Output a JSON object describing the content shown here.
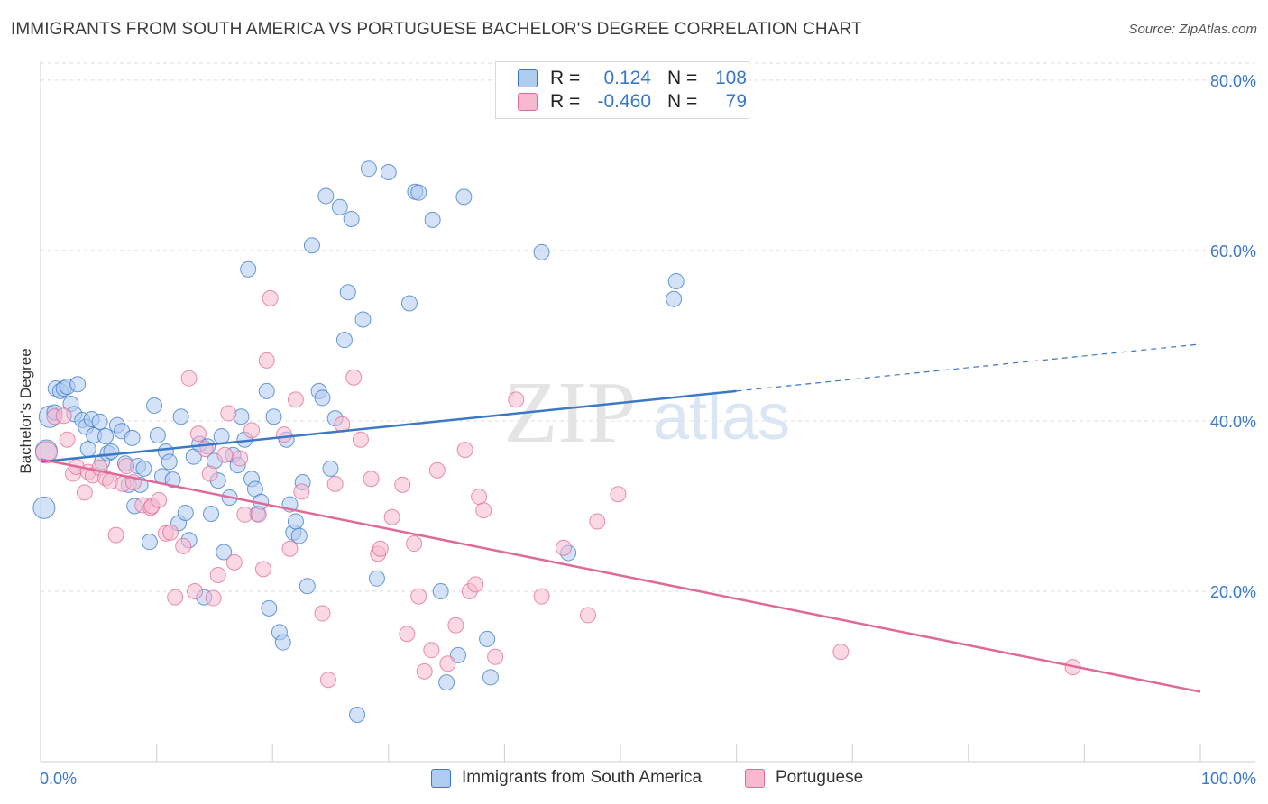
{
  "title": "IMMIGRANTS FROM SOUTH AMERICA VS PORTUGUESE BACHELOR'S DEGREE CORRELATION CHART",
  "source": "Source: ZipAtlas.com",
  "watermark": {
    "zip": "ZIP",
    "atlas": "atlas"
  },
  "colors": {
    "blue": "#3a78c8",
    "blue_fill": "#aecbf0",
    "pink": "#e06a97",
    "pink_fill": "#f6b9cf",
    "grid": "#dddddd",
    "axis_text": "#3a78c8"
  },
  "legend": {
    "rows": [
      {
        "r_label": "R =",
        "r_value": "0.124",
        "n_label": "N =",
        "n_value": "108",
        "color": "blue"
      },
      {
        "r_label": "R =",
        "r_value": "-0.460",
        "n_label": "N =",
        "n_value": "79",
        "color": "pink"
      }
    ]
  },
  "bottom_legend": [
    {
      "label": "Immigrants from South America",
      "color": "blue"
    },
    {
      "label": "Portuguese",
      "color": "pink"
    }
  ],
  "chart_data": {
    "type": "scatter",
    "title": "IMMIGRANTS FROM SOUTH AMERICA VS PORTUGUESE BACHELOR'S DEGREE CORRELATION CHART",
    "xlabel": "",
    "ylabel": "Bachelor's Degree",
    "xlim": [
      0,
      100
    ],
    "ylim": [
      0,
      82
    ],
    "x_tick_labels": [
      "0.0%",
      "100.0%"
    ],
    "y_ticks": [
      20,
      40,
      60,
      80
    ],
    "y_tick_labels": [
      "20.0%",
      "40.0%",
      "60.0%",
      "80.0%"
    ],
    "grid": true,
    "legend_position": "top-center",
    "series": [
      {
        "name": "Immigrants from South America",
        "color": "blue",
        "trend": {
          "x": [
            0,
            60
          ],
          "y": [
            35.2,
            43.5
          ],
          "dashed_to": [
            100,
            49.0
          ]
        },
        "points": [
          [
            0.3,
            29.8
          ],
          [
            0.5,
            36.5
          ],
          [
            0.8,
            40.5
          ],
          [
            1.2,
            41.0
          ],
          [
            1.3,
            43.8
          ],
          [
            1.7,
            43.5
          ],
          [
            2.0,
            43.8
          ],
          [
            2.3,
            44.0
          ],
          [
            2.6,
            42.0
          ],
          [
            2.9,
            40.8
          ],
          [
            3.2,
            44.3
          ],
          [
            3.6,
            40.1
          ],
          [
            3.9,
            39.3
          ],
          [
            4.1,
            36.7
          ],
          [
            4.4,
            40.2
          ],
          [
            4.6,
            38.3
          ],
          [
            5.1,
            39.9
          ],
          [
            5.3,
            35.2
          ],
          [
            5.6,
            38.2
          ],
          [
            5.8,
            36.2
          ],
          [
            6.1,
            36.4
          ],
          [
            6.6,
            39.5
          ],
          [
            7.0,
            38.8
          ],
          [
            7.3,
            35.0
          ],
          [
            7.6,
            32.5
          ],
          [
            7.9,
            38.0
          ],
          [
            8.1,
            30.0
          ],
          [
            8.4,
            34.7
          ],
          [
            8.6,
            32.5
          ],
          [
            8.9,
            34.4
          ],
          [
            9.4,
            25.8
          ],
          [
            9.8,
            41.8
          ],
          [
            10.1,
            38.3
          ],
          [
            10.5,
            33.5
          ],
          [
            10.8,
            36.4
          ],
          [
            11.1,
            35.2
          ],
          [
            11.4,
            33.1
          ],
          [
            11.9,
            28.0
          ],
          [
            12.1,
            40.5
          ],
          [
            12.5,
            29.2
          ],
          [
            12.8,
            26.0
          ],
          [
            13.2,
            35.8
          ],
          [
            13.7,
            37.3
          ],
          [
            14.1,
            19.3
          ],
          [
            14.4,
            37.0
          ],
          [
            14.7,
            29.1
          ],
          [
            15.0,
            35.3
          ],
          [
            15.3,
            33.0
          ],
          [
            15.6,
            38.2
          ],
          [
            15.8,
            24.6
          ],
          [
            16.3,
            31.0
          ],
          [
            16.6,
            36.0
          ],
          [
            17.0,
            34.8
          ],
          [
            17.3,
            40.5
          ],
          [
            17.6,
            37.8
          ],
          [
            17.9,
            57.8
          ],
          [
            18.2,
            33.2
          ],
          [
            18.5,
            32.0
          ],
          [
            18.7,
            29.1
          ],
          [
            19.0,
            30.5
          ],
          [
            19.5,
            43.5
          ],
          [
            19.7,
            18.0
          ],
          [
            20.1,
            40.5
          ],
          [
            20.6,
            15.2
          ],
          [
            20.9,
            14.0
          ],
          [
            21.2,
            37.8
          ],
          [
            21.5,
            30.2
          ],
          [
            21.8,
            26.9
          ],
          [
            22.0,
            28.2
          ],
          [
            22.3,
            26.5
          ],
          [
            22.6,
            32.8
          ],
          [
            23.0,
            20.6
          ],
          [
            23.4,
            60.6
          ],
          [
            24.0,
            43.5
          ],
          [
            24.3,
            42.7
          ],
          [
            24.6,
            66.4
          ],
          [
            25.0,
            34.4
          ],
          [
            25.4,
            40.3
          ],
          [
            25.8,
            65.1
          ],
          [
            26.2,
            49.5
          ],
          [
            26.5,
            55.1
          ],
          [
            26.8,
            63.7
          ],
          [
            27.3,
            5.5
          ],
          [
            27.8,
            51.9
          ],
          [
            28.3,
            69.6
          ],
          [
            29.0,
            21.5
          ],
          [
            30.0,
            69.2
          ],
          [
            31.8,
            53.8
          ],
          [
            32.3,
            66.9
          ],
          [
            32.6,
            66.8
          ],
          [
            33.8,
            63.6
          ],
          [
            34.5,
            20.0
          ],
          [
            35.0,
            9.3
          ],
          [
            36.0,
            12.5
          ],
          [
            36.5,
            66.3
          ],
          [
            38.5,
            14.4
          ],
          [
            38.8,
            9.9
          ],
          [
            43.2,
            59.8
          ],
          [
            45.5,
            24.5
          ],
          [
            54.6,
            54.3
          ],
          [
            54.8,
            56.4
          ]
        ]
      },
      {
        "name": "Portuguese",
        "color": "pink",
        "trend": {
          "x": [
            0,
            100
          ],
          "y": [
            35.5,
            8.2
          ]
        },
        "points": [
          [
            0.5,
            36.3
          ],
          [
            1.2,
            40.5
          ],
          [
            2.0,
            40.6
          ],
          [
            2.3,
            37.8
          ],
          [
            2.8,
            33.8
          ],
          [
            3.1,
            34.6
          ],
          [
            3.8,
            31.6
          ],
          [
            4.1,
            34.0
          ],
          [
            4.5,
            33.6
          ],
          [
            5.1,
            34.5
          ],
          [
            5.6,
            33.3
          ],
          [
            6.0,
            32.9
          ],
          [
            6.5,
            26.6
          ],
          [
            7.1,
            32.6
          ],
          [
            7.4,
            34.7
          ],
          [
            8.0,
            32.8
          ],
          [
            8.8,
            30.1
          ],
          [
            9.5,
            29.8
          ],
          [
            9.6,
            30.0
          ],
          [
            10.2,
            30.7
          ],
          [
            10.8,
            26.8
          ],
          [
            11.2,
            26.9
          ],
          [
            11.6,
            19.3
          ],
          [
            12.3,
            25.3
          ],
          [
            12.8,
            45.0
          ],
          [
            13.3,
            20.0
          ],
          [
            13.6,
            38.5
          ],
          [
            14.2,
            36.7
          ],
          [
            14.6,
            33.8
          ],
          [
            14.9,
            19.2
          ],
          [
            15.3,
            21.9
          ],
          [
            15.9,
            36.0
          ],
          [
            16.2,
            40.9
          ],
          [
            16.7,
            23.4
          ],
          [
            17.2,
            35.6
          ],
          [
            17.6,
            29.0
          ],
          [
            18.2,
            38.9
          ],
          [
            18.8,
            29.0
          ],
          [
            19.2,
            22.6
          ],
          [
            19.5,
            47.1
          ],
          [
            19.8,
            54.4
          ],
          [
            21.0,
            38.4
          ],
          [
            21.5,
            25.0
          ],
          [
            22.0,
            42.5
          ],
          [
            22.5,
            31.7
          ],
          [
            24.3,
            17.4
          ],
          [
            24.8,
            9.6
          ],
          [
            25.4,
            32.6
          ],
          [
            26.0,
            39.6
          ],
          [
            27.0,
            45.1
          ],
          [
            27.6,
            37.8
          ],
          [
            28.5,
            33.2
          ],
          [
            29.1,
            24.4
          ],
          [
            29.3,
            25.0
          ],
          [
            30.3,
            28.7
          ],
          [
            31.2,
            32.5
          ],
          [
            31.6,
            15.0
          ],
          [
            32.2,
            25.6
          ],
          [
            32.6,
            19.4
          ],
          [
            33.1,
            10.6
          ],
          [
            33.7,
            13.1
          ],
          [
            34.2,
            34.2
          ],
          [
            35.1,
            11.5
          ],
          [
            35.8,
            16.0
          ],
          [
            36.6,
            36.6
          ],
          [
            37.0,
            20.0
          ],
          [
            37.5,
            20.8
          ],
          [
            37.8,
            31.1
          ],
          [
            38.2,
            29.5
          ],
          [
            39.2,
            12.3
          ],
          [
            41.0,
            42.5
          ],
          [
            43.2,
            19.4
          ],
          [
            45.1,
            25.1
          ],
          [
            47.2,
            17.2
          ],
          [
            48.0,
            28.2
          ],
          [
            49.8,
            31.4
          ],
          [
            69.0,
            12.9
          ],
          [
            89.0,
            11.1
          ]
        ]
      }
    ]
  }
}
